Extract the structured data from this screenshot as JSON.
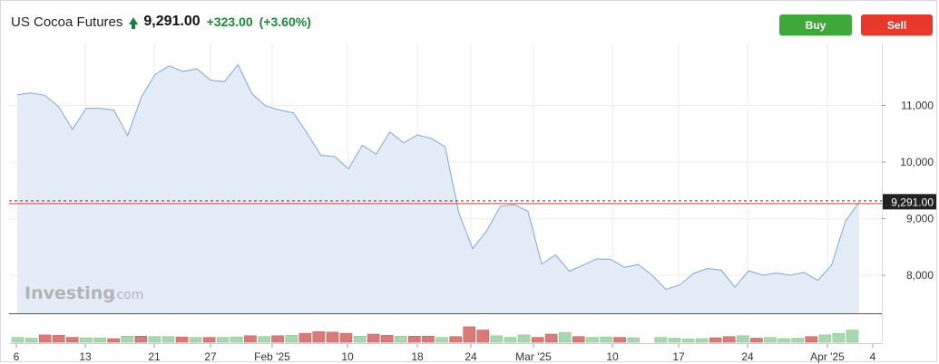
{
  "header": {
    "instrument": "US Cocoa Futures",
    "price": "9,291.00",
    "change": "+323.00",
    "change_pct": "(+3.60%)"
  },
  "buttons": {
    "buy": "Buy",
    "sell": "Sell"
  },
  "watermark": {
    "brand": "Investing",
    "domain": ".com"
  },
  "current_price_label": "9,291.00",
  "colors": {
    "line": "#7aa9d6",
    "area": "#e4edf7",
    "up_volume": "#a7d8b0",
    "down_volume": "#dc7a7a",
    "price_line": "#d9443a"
  },
  "chart_data": {
    "type": "area",
    "y_range": [
      7500,
      11900
    ],
    "current_price": 9291,
    "grid": true,
    "x_ticks": [
      "6",
      "13",
      "21",
      "27",
      "Feb '25",
      "10",
      "18",
      "24",
      "Mar '25",
      "10",
      "17",
      "24",
      "Apr '25",
      "4"
    ],
    "y_ticks": [
      "11,000",
      "10,000",
      "9,000",
      "8,000"
    ],
    "y_tick_values": [
      11000,
      10000,
      9000,
      8000
    ],
    "series": [
      {
        "values": [
          11190,
          11220,
          11180,
          10980,
          10580,
          10950,
          10950,
          10920,
          10470,
          11150,
          11550,
          11700,
          11600,
          11650,
          11450,
          11420,
          11720,
          11210,
          10990,
          10920,
          10870,
          10510,
          10120,
          10100,
          9880,
          10300,
          10140,
          10530,
          10340,
          10480,
          10420,
          10270,
          9100,
          8470,
          8780,
          9220,
          9250,
          9130,
          8200,
          8360,
          8070,
          8180,
          8290,
          8280,
          8140,
          8190,
          8000,
          7750,
          7830,
          8030,
          8120,
          8090,
          7790,
          8080,
          8000,
          8040,
          8000,
          8050,
          7910,
          8180,
          8950,
          9291
        ]
      }
    ],
    "volume": [
      {
        "v": 0.3,
        "d": "up"
      },
      {
        "v": 0.25,
        "d": "up"
      },
      {
        "v": 0.45,
        "d": "down"
      },
      {
        "v": 0.42,
        "d": "down"
      },
      {
        "v": 0.3,
        "d": "down"
      },
      {
        "v": 0.28,
        "d": "up"
      },
      {
        "v": 0.27,
        "d": "up"
      },
      {
        "v": 0.22,
        "d": "down"
      },
      {
        "v": 0.38,
        "d": "up"
      },
      {
        "v": 0.37,
        "d": "down"
      },
      {
        "v": 0.35,
        "d": "up"
      },
      {
        "v": 0.35,
        "d": "up"
      },
      {
        "v": 0.33,
        "d": "down"
      },
      {
        "v": 0.3,
        "d": "up"
      },
      {
        "v": 0.3,
        "d": "down"
      },
      {
        "v": 0.3,
        "d": "up"
      },
      {
        "v": 0.33,
        "d": "up"
      },
      {
        "v": 0.4,
        "d": "down"
      },
      {
        "v": 0.35,
        "d": "up"
      },
      {
        "v": 0.4,
        "d": "down"
      },
      {
        "v": 0.42,
        "d": "up"
      },
      {
        "v": 0.55,
        "d": "down"
      },
      {
        "v": 0.65,
        "d": "down"
      },
      {
        "v": 0.62,
        "d": "down"
      },
      {
        "v": 0.55,
        "d": "down"
      },
      {
        "v": 0.38,
        "d": "up"
      },
      {
        "v": 0.5,
        "d": "down"
      },
      {
        "v": 0.42,
        "d": "down"
      },
      {
        "v": 0.38,
        "d": "up"
      },
      {
        "v": 0.37,
        "d": "down"
      },
      {
        "v": 0.38,
        "d": "down"
      },
      {
        "v": 0.3,
        "d": "up"
      },
      {
        "v": 0.35,
        "d": "down"
      },
      {
        "v": 0.95,
        "d": "down"
      },
      {
        "v": 0.75,
        "d": "down"
      },
      {
        "v": 0.4,
        "d": "up"
      },
      {
        "v": 0.3,
        "d": "up"
      },
      {
        "v": 0.45,
        "d": "up"
      },
      {
        "v": 0.3,
        "d": "down"
      },
      {
        "v": 0.5,
        "d": "down"
      },
      {
        "v": 0.6,
        "d": "up"
      },
      {
        "v": 0.35,
        "d": "down"
      },
      {
        "v": 0.3,
        "d": "up"
      },
      {
        "v": 0.33,
        "d": "up"
      },
      {
        "v": 0.3,
        "d": "down"
      },
      {
        "v": 0.28,
        "d": "up"
      },
      {
        "v": 0.0,
        "d": "up"
      },
      {
        "v": 0.3,
        "d": "up"
      },
      {
        "v": 0.25,
        "d": "up"
      },
      {
        "v": 0.2,
        "d": "up"
      },
      {
        "v": 0.22,
        "d": "up"
      },
      {
        "v": 0.28,
        "d": "down"
      },
      {
        "v": 0.35,
        "d": "down"
      },
      {
        "v": 0.4,
        "d": "up"
      },
      {
        "v": 0.25,
        "d": "down"
      },
      {
        "v": 0.3,
        "d": "up"
      },
      {
        "v": 0.22,
        "d": "up"
      },
      {
        "v": 0.25,
        "d": "up"
      },
      {
        "v": 0.35,
        "d": "down"
      },
      {
        "v": 0.45,
        "d": "up"
      },
      {
        "v": 0.55,
        "d": "up"
      },
      {
        "v": 0.75,
        "d": "up"
      }
    ]
  }
}
